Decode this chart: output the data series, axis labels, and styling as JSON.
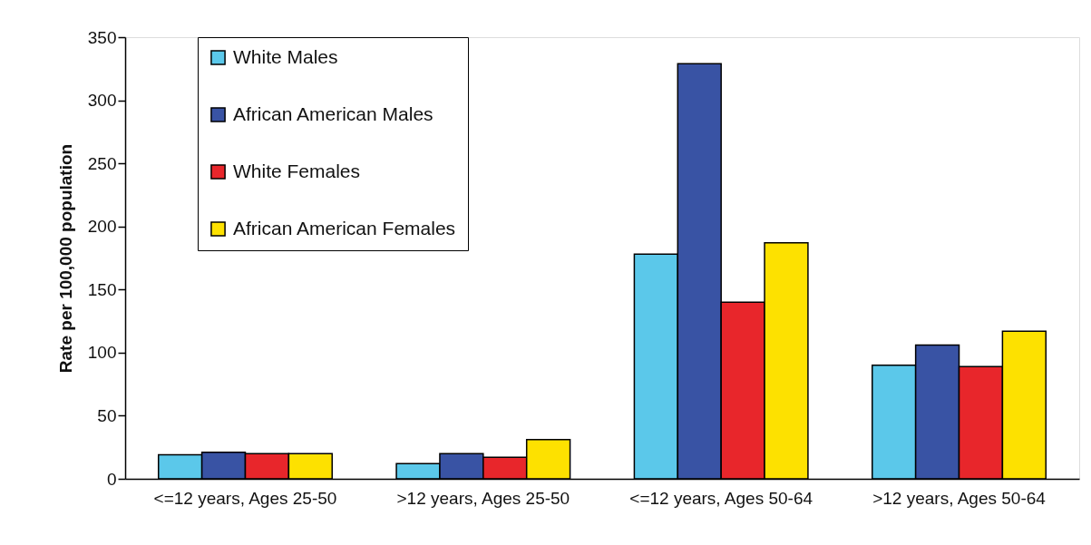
{
  "chart_data": {
    "type": "bar",
    "ylabel": "Rate per 100,000 population",
    "categories": [
      "<=12 years, Ages 25-50",
      ">12 years, Ages 25-50",
      "<=12 years, Ages 50-64",
      ">12 years, Ages 50-64"
    ],
    "series": [
      {
        "name": "White Males",
        "color": "#5bc8ea",
        "values": [
          19,
          12,
          178,
          90
        ]
      },
      {
        "name": "African American Males",
        "color": "#3953a4",
        "values": [
          21,
          20,
          329,
          106
        ]
      },
      {
        "name": "White Females",
        "color": "#e8262b",
        "values": [
          20,
          17,
          140,
          89
        ]
      },
      {
        "name": "African American Females",
        "color": "#fde100",
        "values": [
          20,
          31,
          187,
          117
        ]
      }
    ],
    "ylim": [
      0,
      350
    ],
    "yticks": [
      0,
      50,
      100,
      150,
      200,
      250,
      300,
      350
    ],
    "legend": "top left"
  }
}
